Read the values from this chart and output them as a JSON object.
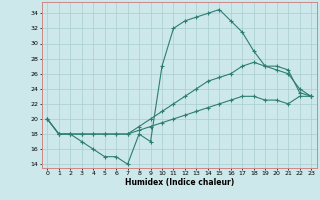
{
  "title": "",
  "xlabel": "Humidex (Indice chaleur)",
  "xlim": [
    -0.5,
    23.5
  ],
  "ylim": [
    13.5,
    35.5
  ],
  "xticks": [
    0,
    1,
    2,
    3,
    4,
    5,
    6,
    7,
    8,
    9,
    10,
    11,
    12,
    13,
    14,
    15,
    16,
    17,
    18,
    19,
    20,
    21,
    22,
    23
  ],
  "yticks": [
    14,
    16,
    18,
    20,
    22,
    24,
    26,
    28,
    30,
    32,
    34
  ],
  "bg_color": "#cce8ea",
  "grid_color": "#aacdd0",
  "line_color": "#2e7d72",
  "line1_x": [
    0,
    1,
    2,
    3,
    4,
    5,
    6,
    7,
    8,
    9,
    10,
    11,
    12,
    13,
    14,
    15,
    16,
    17,
    18,
    19,
    20,
    21,
    22,
    23
  ],
  "line1_y": [
    20,
    18,
    18,
    17,
    16,
    15,
    15,
    14,
    18,
    17,
    27,
    32,
    33,
    33.5,
    34,
    34.5,
    33,
    31.5,
    29,
    27,
    26.5,
    26,
    24,
    23
  ],
  "line2_x": [
    0,
    1,
    2,
    3,
    4,
    5,
    6,
    7,
    8,
    9,
    10,
    11,
    12,
    13,
    14,
    15,
    16,
    17,
    18,
    19,
    20,
    21,
    22,
    23
  ],
  "line2_y": [
    20,
    18,
    18,
    18,
    18,
    18,
    18,
    18,
    19,
    20,
    21,
    22,
    23,
    24,
    25,
    25.5,
    26,
    27,
    27.5,
    27,
    27,
    26.5,
    23.5,
    23
  ],
  "line3_x": [
    0,
    1,
    2,
    3,
    4,
    5,
    6,
    7,
    8,
    9,
    10,
    11,
    12,
    13,
    14,
    15,
    16,
    17,
    18,
    19,
    20,
    21,
    22,
    23
  ],
  "line3_y": [
    20,
    18,
    18,
    18,
    18,
    18,
    18,
    18,
    18.5,
    19,
    19.5,
    20,
    20.5,
    21,
    21.5,
    22,
    22.5,
    23,
    23,
    22.5,
    22.5,
    22,
    23,
    23
  ]
}
